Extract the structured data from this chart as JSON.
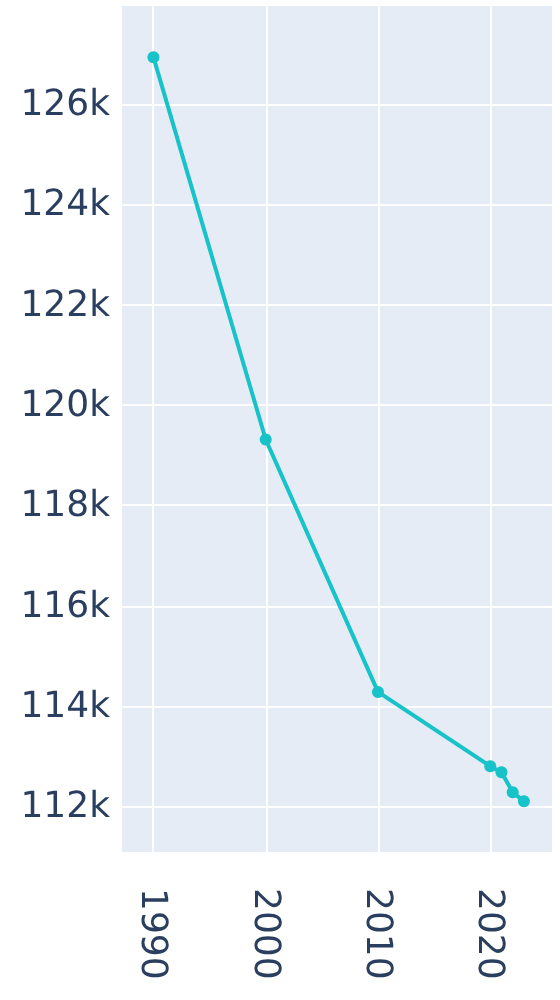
{
  "chart_data": {
    "type": "line",
    "x": [
      1990,
      2000,
      2010,
      2020,
      2021,
      2022,
      2023
    ],
    "series": [
      {
        "color": "#17c3c8",
        "values": [
          126930,
          119310,
          114280,
          112800,
          112680,
          112280,
          112100
        ]
      }
    ],
    "xlim": [
      1987.2,
      2025.5
    ],
    "xticks": [
      1990,
      2000,
      2010,
      2020
    ],
    "ylim": [
      111090,
      127950
    ],
    "yticks": [
      {
        "value": 112000,
        "label": "112k"
      },
      {
        "value": 114000,
        "label": "114k"
      },
      {
        "value": 116000,
        "label": "116k"
      },
      {
        "value": 118000,
        "label": "118k"
      },
      {
        "value": 120000,
        "label": "120k"
      },
      {
        "value": 122000,
        "label": "122k"
      },
      {
        "value": 124000,
        "label": "124k"
      },
      {
        "value": 126000,
        "label": "126k"
      }
    ],
    "grid": true,
    "marker": "circle"
  }
}
